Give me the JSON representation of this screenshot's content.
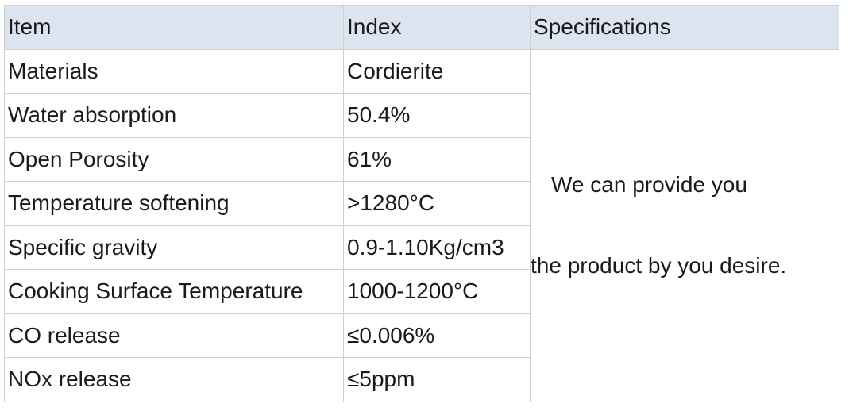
{
  "table": {
    "header": [
      "Item",
      "Index",
      "Specifications"
    ],
    "rows": [
      [
        "Materials",
        "Cordierite"
      ],
      [
        "Water absorption",
        "50.4%"
      ],
      [
        "Open Porosity",
        "61%"
      ],
      [
        "Temperature softening",
        ">1280°C"
      ],
      [
        "Specific gravity",
        "0.9-1.10Kg/cm3"
      ],
      [
        "Cooking Surface Temperature",
        "1000-1200°C"
      ],
      [
        "CO release",
        "≤0.006%"
      ],
      [
        "NOx release",
        "≤5ppm"
      ]
    ],
    "specifications_note": [
      "We can provide you",
      "the product by you desire."
    ]
  }
}
